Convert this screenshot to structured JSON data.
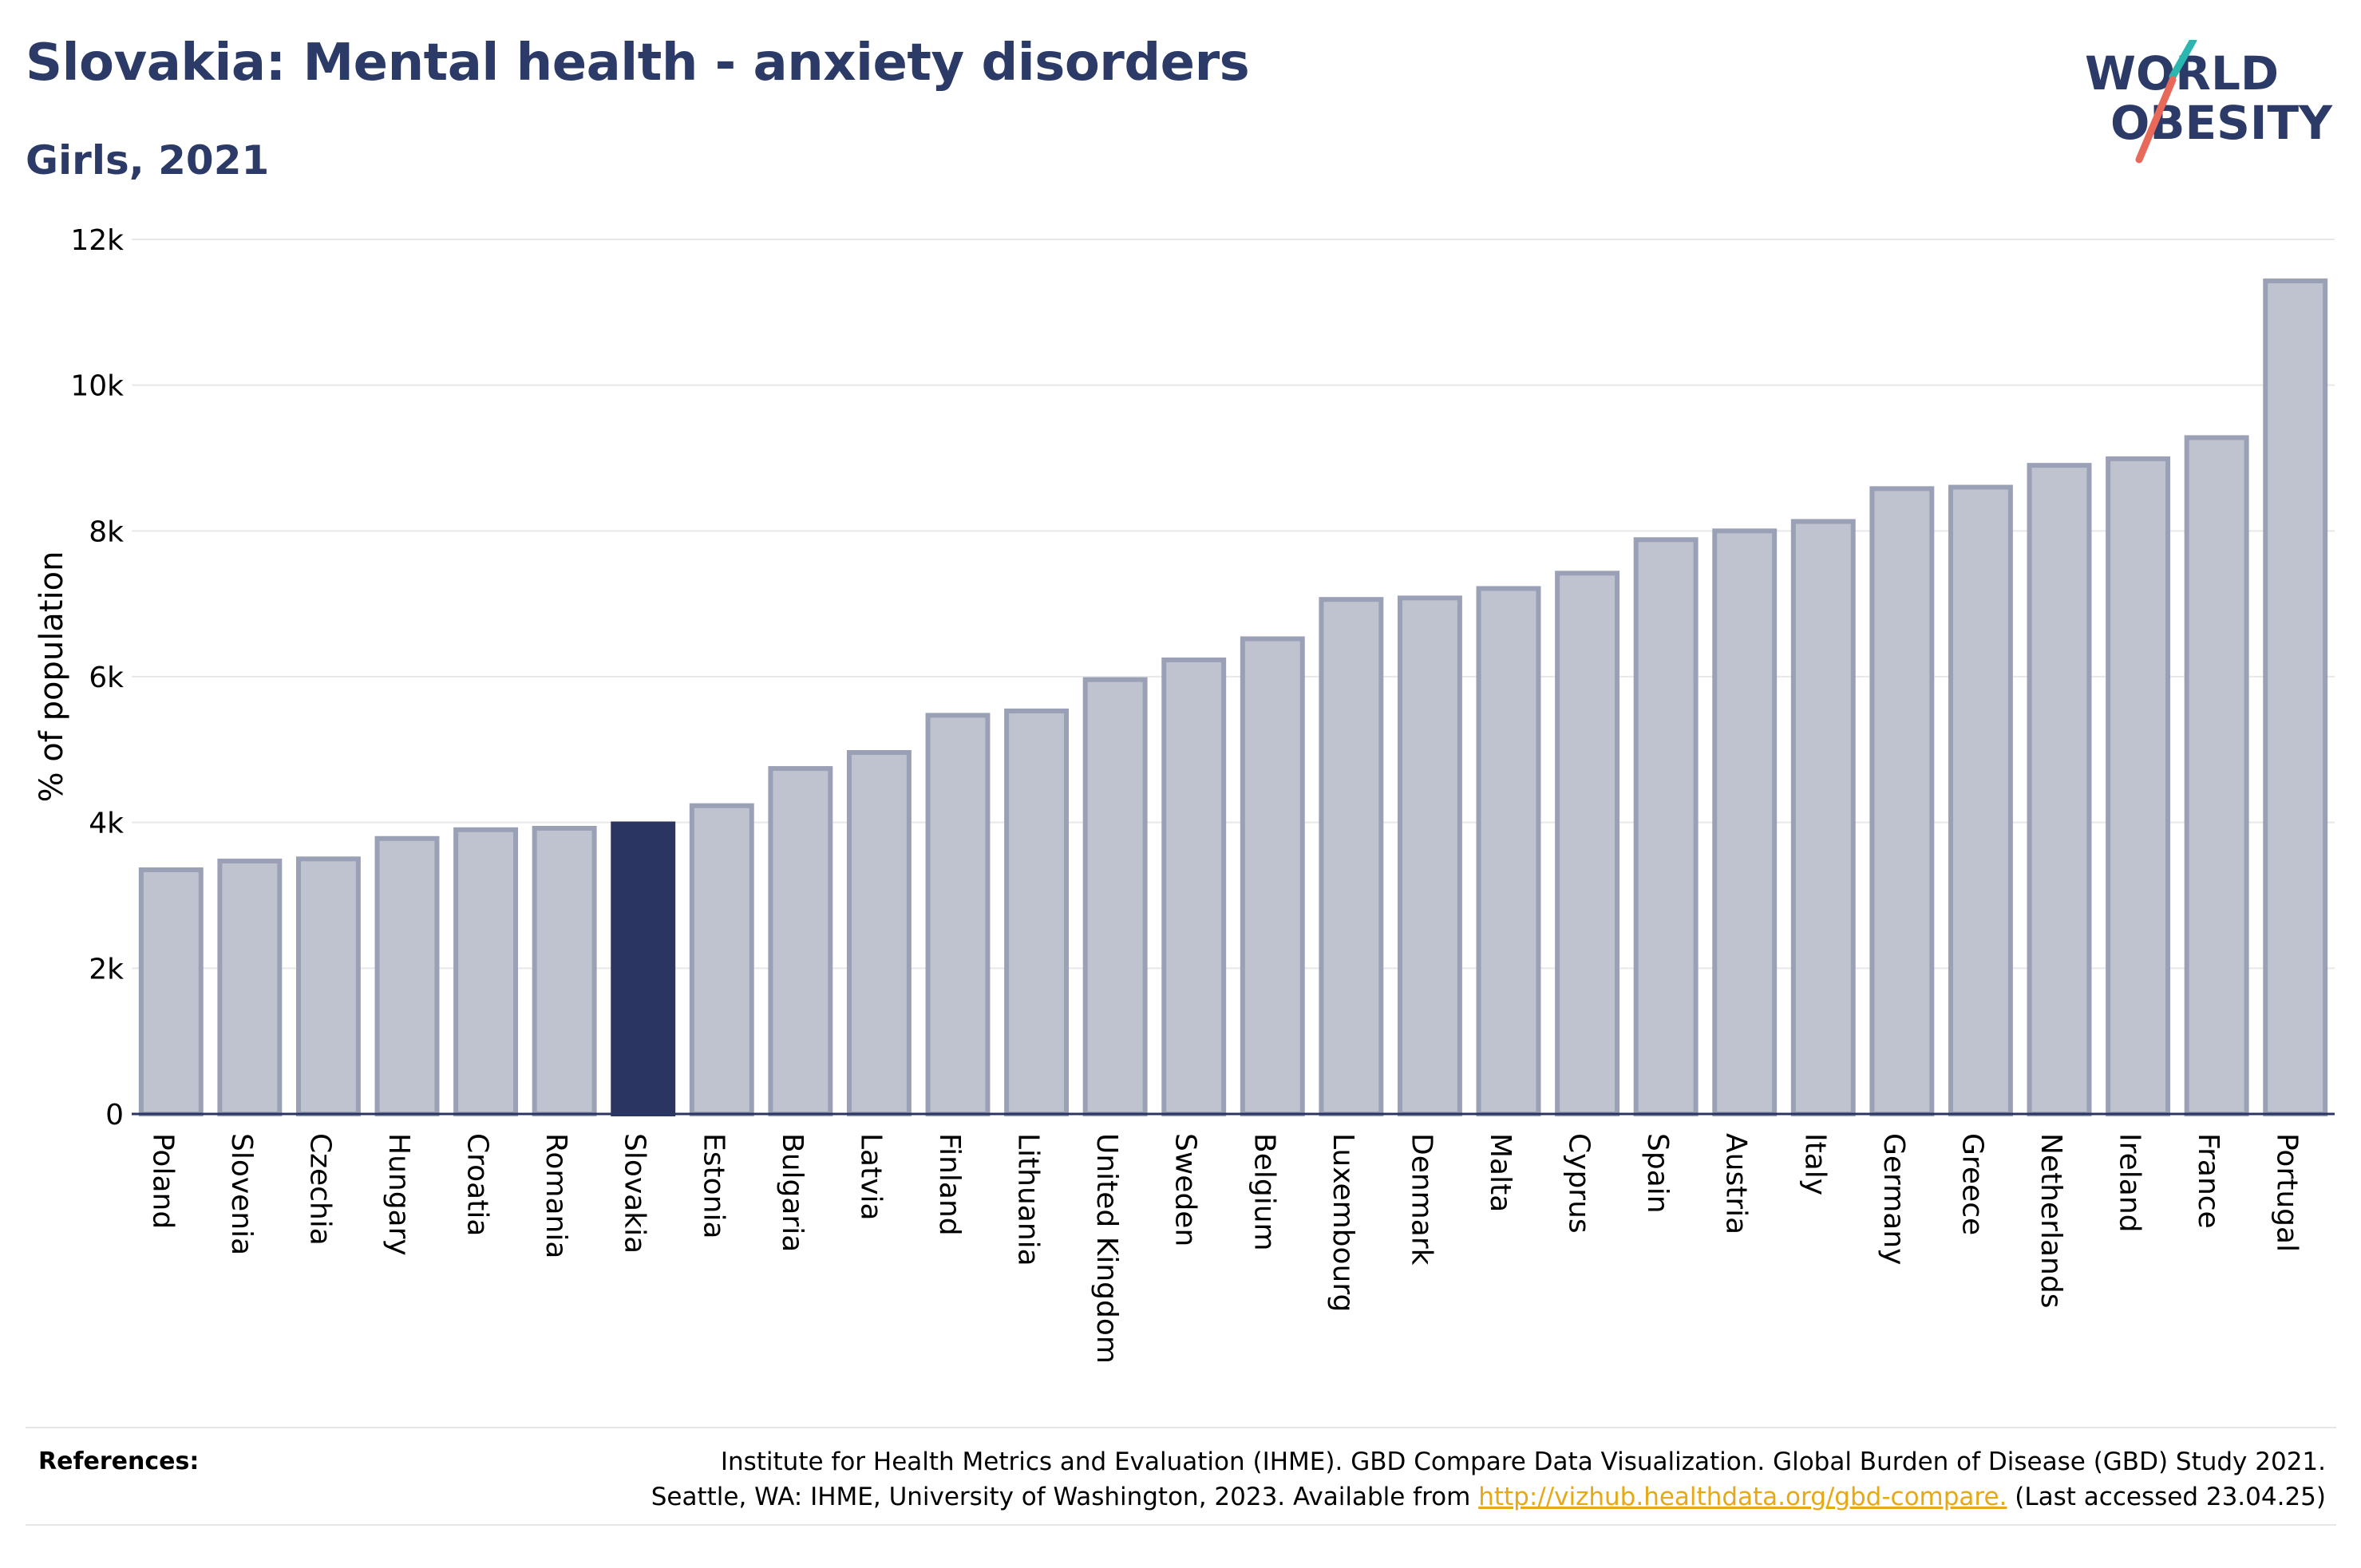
{
  "title": "Slovakia: Mental health - anxiety disorders",
  "subtitle": "Girls, 2021",
  "logo": {
    "line1": "WORLD",
    "line2": "OBESITY",
    "slash_colors": [
      "#2bb6b0",
      "#e8685a"
    ],
    "text_color": "#2b3a67"
  },
  "colors": {
    "highlight": "#2b3561",
    "bar_fill": "#bfc3d0",
    "bar_stroke": "#9aa0b5",
    "gridline": "#e8e8e8",
    "axis": "#2b3561"
  },
  "chart_data": {
    "type": "bar",
    "ylabel": "% of population",
    "ylim": [
      0,
      12000
    ],
    "yticks": [
      0,
      2000,
      4000,
      6000,
      8000,
      10000,
      12000
    ],
    "ytick_labels": [
      "0",
      "2k",
      "4k",
      "6k",
      "8k",
      "10k",
      "12k"
    ],
    "highlight": "Slovakia",
    "grid": "horizontal",
    "categories": [
      "Poland",
      "Slovenia",
      "Czechia",
      "Hungary",
      "Croatia",
      "Romania",
      "Slovakia",
      "Estonia",
      "Bulgaria",
      "Latvia",
      "Finland",
      "Lithuania",
      "United Kingdom",
      "Sweden",
      "Belgium",
      "Luxembourg",
      "Denmark",
      "Malta",
      "Cyprus",
      "Spain",
      "Austria",
      "Italy",
      "Germany",
      "Greece",
      "Netherlands",
      "Ireland",
      "France",
      "Portugal"
    ],
    "values": [
      3350,
      3470,
      3500,
      3780,
      3900,
      3920,
      3980,
      4230,
      4740,
      4960,
      5470,
      5530,
      5960,
      6230,
      6520,
      7060,
      7080,
      7210,
      7420,
      7880,
      8000,
      8130,
      8580,
      8600,
      8900,
      8990,
      9280,
      11430
    ]
  },
  "references": {
    "label": "References:",
    "line1": "Institute for Health Metrics and Evaluation (IHME). GBD Compare Data Visualization. Global Burden of Disease (GBD) Study 2021.",
    "line2_pre": "Seattle, WA: IHME, University of Washington, 2023. Available from ",
    "link": "http://vizhub.healthdata.org/gbd-compare.",
    "line2_post": " (Last accessed 23.04.25)"
  }
}
